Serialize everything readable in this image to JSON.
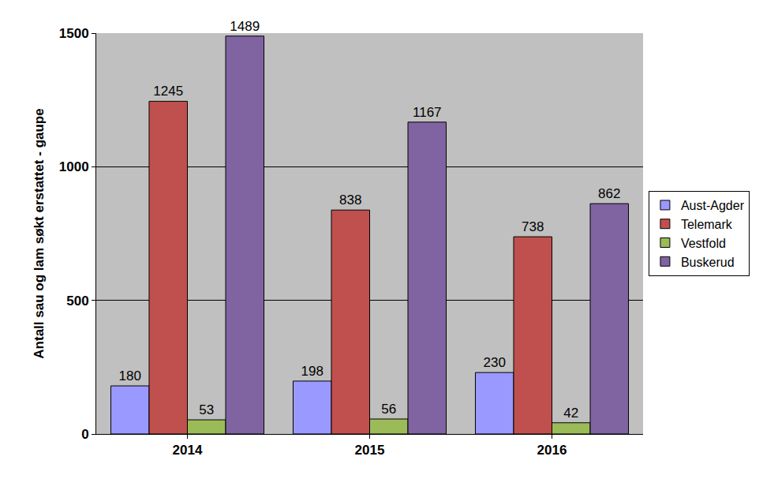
{
  "chart_data": {
    "type": "bar",
    "y_label": "Antall sau og lam søkt erstattet - gaupe",
    "categories": [
      "2014",
      "2015",
      "2016"
    ],
    "series": [
      {
        "name": "Aust-Agder",
        "color": "#9999ff",
        "values": [
          180,
          198,
          230
        ]
      },
      {
        "name": "Telemark",
        "color": "#c0504d",
        "values": [
          1245,
          838,
          738
        ]
      },
      {
        "name": "Vestfold",
        "color": "#9bbb59",
        "values": [
          53,
          56,
          42
        ]
      },
      {
        "name": "Buskerud",
        "color": "#8064a2",
        "values": [
          1489,
          1167,
          862
        ]
      }
    ],
    "ylim": [
      0,
      1500
    ],
    "yticks": [
      0,
      500,
      1000,
      1500
    ],
    "grid": true,
    "legend": "right",
    "data_labels": true
  }
}
